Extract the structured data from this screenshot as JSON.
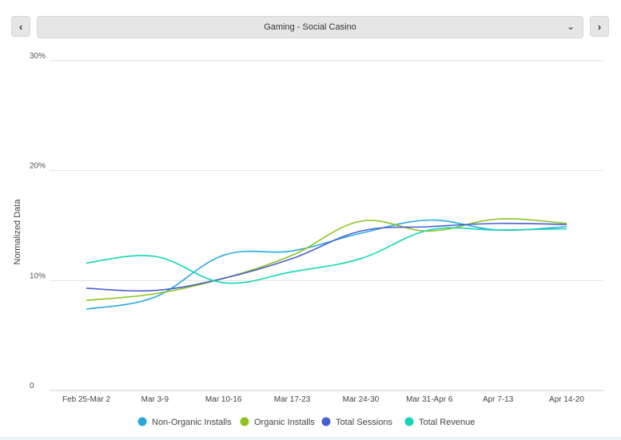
{
  "nav": {
    "prev_icon": "‹",
    "next_icon": "›"
  },
  "selector": {
    "value": "Gaming - Social Casino",
    "chevron": "⌄"
  },
  "chart_data": {
    "type": "line",
    "title": "",
    "xlabel": "",
    "ylabel": "Normalized Data",
    "categories": [
      "Feb 25-Mar 2",
      "Mar 3-9",
      "Mar 10-16",
      "Mar 17-23",
      "Mar 24-30",
      "Mar 31-Apr 6",
      "Apr 7-13",
      "Apr 14-20"
    ],
    "ylim": [
      0,
      30
    ],
    "yticks": [
      0,
      10,
      20,
      30
    ],
    "ytick_labels": [
      "0",
      "10%",
      "20%",
      "30%"
    ],
    "grid": true,
    "legend_position": "bottom",
    "series": [
      {
        "name": "Non-Organic Installs",
        "color": "#29a8e0",
        "values": [
          7.4,
          8.5,
          12.3,
          12.7,
          14.3,
          15.5,
          14.6,
          14.9
        ]
      },
      {
        "name": "Organic Installs",
        "color": "#8dc21f",
        "values": [
          8.2,
          8.8,
          10.2,
          12.3,
          15.4,
          14.5,
          15.6,
          15.2
        ]
      },
      {
        "name": "Total Sessions",
        "color": "#4a5fd0",
        "values": [
          9.3,
          9.1,
          10.2,
          12.0,
          14.5,
          14.9,
          15.2,
          15.1
        ]
      },
      {
        "name": "Total Revenue",
        "color": "#14d6b4",
        "values": [
          11.6,
          12.2,
          9.8,
          10.8,
          12.0,
          14.6,
          14.6,
          14.7
        ]
      }
    ]
  }
}
